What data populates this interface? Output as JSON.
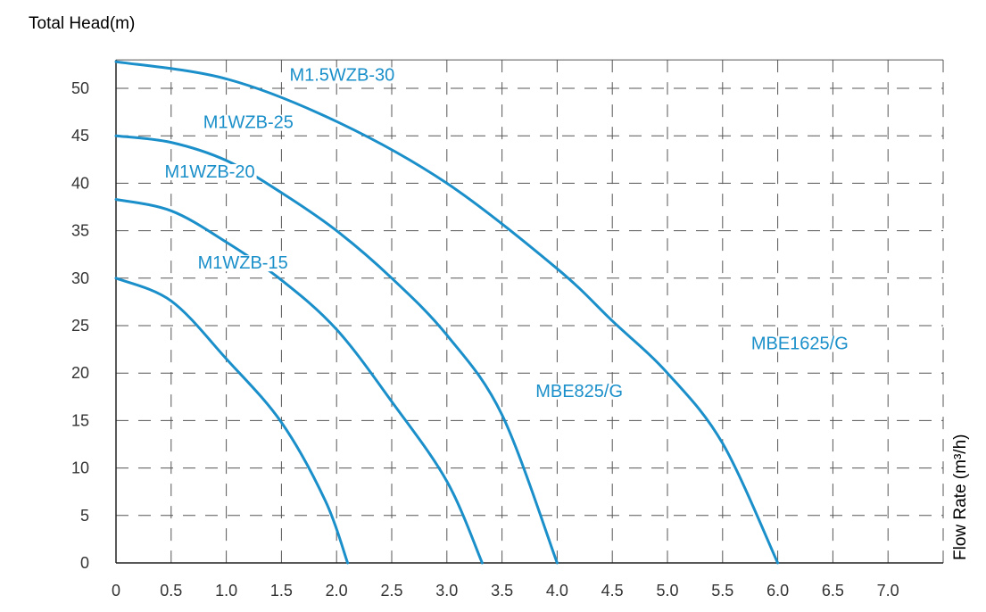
{
  "chart_data": {
    "type": "line",
    "title": "",
    "ylabel": "Total Head(m)",
    "xlabel": "Flow Rate (m³/h)",
    "xlim": [
      0,
      7.5
    ],
    "ylim": [
      0,
      53
    ],
    "x_ticks": [
      "0",
      "0.5",
      "1.0",
      "1.5",
      "2.0",
      "2.5",
      "3.0",
      "3.5",
      "4.0",
      "4.5",
      "5.0",
      "5.5",
      "6.0",
      "6.5",
      "7.0"
    ],
    "y_ticks": [
      "0",
      "5",
      "10",
      "15",
      "20",
      "25",
      "30",
      "35",
      "40",
      "45",
      "50"
    ],
    "grid": true,
    "grid_style": "dashed",
    "colors": {
      "curve": "#1a8fc9",
      "text_accent": "#1a8fc9",
      "grid": "#555555",
      "axis": "#222222"
    },
    "series": [
      {
        "name": "M1WZB-15",
        "shutoff_head": 30,
        "max_flow": 2.1,
        "points": [
          [
            0,
            30
          ],
          [
            0.5,
            27.6
          ],
          [
            1.0,
            21.5
          ],
          [
            1.5,
            14.8
          ],
          [
            1.9,
            6.5
          ],
          [
            2.1,
            0
          ]
        ]
      },
      {
        "name": "M1WZB-20",
        "shutoff_head": 38.3,
        "max_flow": 3.32,
        "points": [
          [
            0,
            38.3
          ],
          [
            0.5,
            37.1
          ],
          [
            1.0,
            33.8
          ],
          [
            1.5,
            29.8
          ],
          [
            2.0,
            24.6
          ],
          [
            2.5,
            17.0
          ],
          [
            3.0,
            8.6
          ],
          [
            3.32,
            0
          ]
        ]
      },
      {
        "name": "M1WZB-25",
        "shutoff_head": 45,
        "max_flow": 4.0,
        "points": [
          [
            0,
            45
          ],
          [
            0.5,
            44.3
          ],
          [
            1.0,
            42.4
          ],
          [
            1.5,
            39.0
          ],
          [
            2.0,
            35.0
          ],
          [
            2.5,
            30.0
          ],
          [
            3.0,
            24.0
          ],
          [
            3.5,
            15.6
          ],
          [
            4.0,
            0
          ]
        ]
      },
      {
        "name": "M1.5WZB-30",
        "shutoff_head": 52.8,
        "max_flow": 6.0,
        "points": [
          [
            0,
            52.8
          ],
          [
            1.0,
            51.0
          ],
          [
            2.0,
            46.5
          ],
          [
            3.0,
            40.0
          ],
          [
            4.0,
            31.0
          ],
          [
            4.5,
            25.5
          ],
          [
            5.0,
            20.0
          ],
          [
            5.5,
            12.6
          ],
          [
            6.0,
            0
          ]
        ]
      }
    ],
    "annotations": [
      {
        "text": "M1WZB-15",
        "x": 1.15,
        "y": 31.0
      },
      {
        "text": "M1WZB-20",
        "x": 0.85,
        "y": 40.6
      },
      {
        "text": "M1WZB-25",
        "x": 1.2,
        "y": 45.8
      },
      {
        "text": "M1.5WZB-30",
        "x": 2.05,
        "y": 50.8
      },
      {
        "text": "MBE825/G",
        "x": 4.2,
        "y": 17.5
      },
      {
        "text": "MBE1625/G",
        "x": 6.2,
        "y": 22.5
      }
    ]
  }
}
